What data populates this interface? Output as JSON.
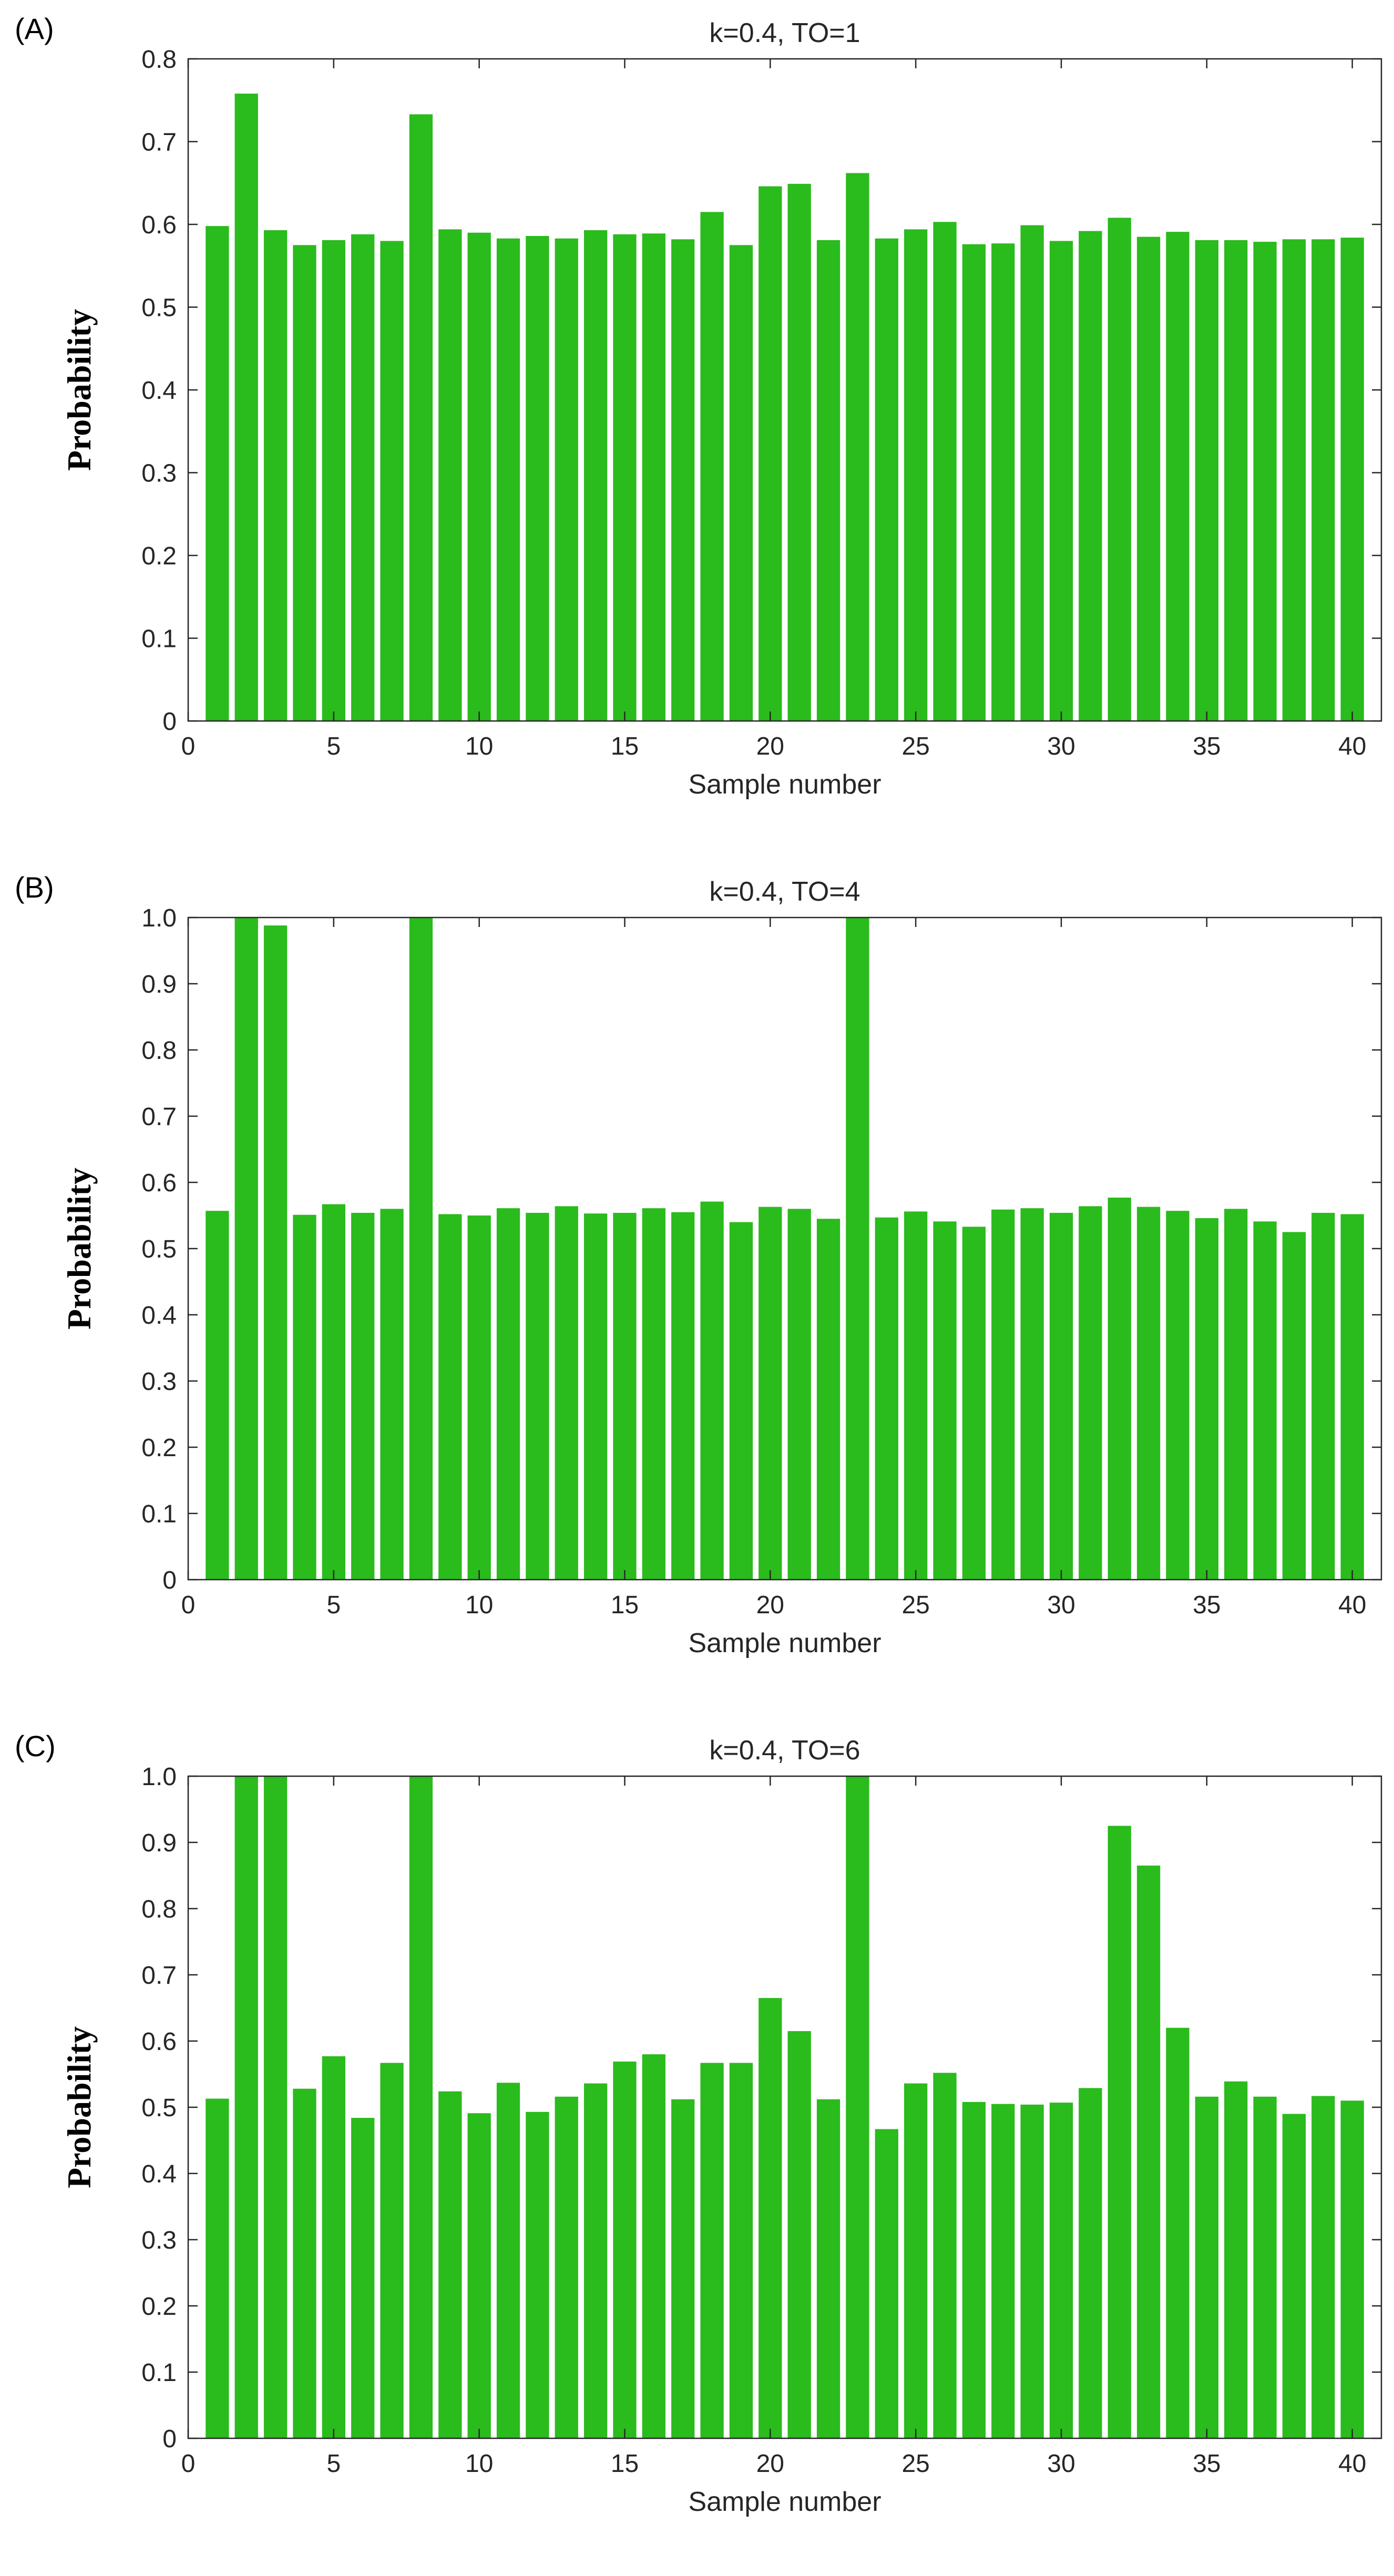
{
  "colors": {
    "bar": "#2ABB1C",
    "axis": "#262626"
  },
  "chart_data": [
    {
      "panel": "(A)",
      "type": "bar",
      "title": "k=0.4, TO=1",
      "xlabel": "Sample number",
      "ylabel": "Probability",
      "xlim": [
        0,
        41
      ],
      "ylim": [
        0,
        0.8
      ],
      "xticks": [
        0,
        5,
        10,
        15,
        20,
        25,
        30,
        35,
        40
      ],
      "yticks": [
        0,
        0.1,
        0.2,
        0.3,
        0.4,
        0.5,
        0.6,
        0.7,
        0.8
      ],
      "ytick_labels": [
        "0",
        "0.1",
        "0.2",
        "0.3",
        "0.4",
        "0.5",
        "0.6",
        "0.7",
        "0.8"
      ],
      "categories": [
        1,
        2,
        3,
        4,
        5,
        6,
        7,
        8,
        9,
        10,
        11,
        12,
        13,
        14,
        15,
        16,
        17,
        18,
        19,
        20,
        21,
        22,
        23,
        24,
        25,
        26,
        27,
        28,
        29,
        30,
        31,
        32,
        33,
        34,
        35,
        36,
        37,
        38,
        39,
        40
      ],
      "values": [
        0.598,
        0.758,
        0.593,
        0.575,
        0.581,
        0.588,
        0.58,
        0.733,
        0.594,
        0.59,
        0.583,
        0.586,
        0.583,
        0.593,
        0.588,
        0.589,
        0.582,
        0.615,
        0.575,
        0.646,
        0.649,
        0.581,
        0.662,
        0.583,
        0.594,
        0.603,
        0.576,
        0.577,
        0.599,
        0.58,
        0.592,
        0.608,
        0.585,
        0.591,
        0.581,
        0.581,
        0.579,
        0.582,
        0.582,
        0.584
      ]
    },
    {
      "panel": "(B)",
      "type": "bar",
      "title": "k=0.4, TO=4",
      "xlabel": "Sample number",
      "ylabel": "Probability",
      "xlim": [
        0,
        41
      ],
      "ylim": [
        0,
        1.0
      ],
      "xticks": [
        0,
        5,
        10,
        15,
        20,
        25,
        30,
        35,
        40
      ],
      "yticks": [
        0,
        0.1,
        0.2,
        0.3,
        0.4,
        0.5,
        0.6,
        0.7,
        0.8,
        0.9,
        1.0
      ],
      "ytick_labels": [
        "0",
        "0.1",
        "0.2",
        "0.3",
        "0.4",
        "0.5",
        "0.6",
        "0.7",
        "0.8",
        "0.9",
        "1.0"
      ],
      "categories": [
        1,
        2,
        3,
        4,
        5,
        6,
        7,
        8,
        9,
        10,
        11,
        12,
        13,
        14,
        15,
        16,
        17,
        18,
        19,
        20,
        21,
        22,
        23,
        24,
        25,
        26,
        27,
        28,
        29,
        30,
        31,
        32,
        33,
        34,
        35,
        36,
        37,
        38,
        39,
        40
      ],
      "values": [
        0.557,
        1.0,
        0.988,
        0.551,
        0.567,
        0.554,
        0.56,
        1.0,
        0.552,
        0.55,
        0.561,
        0.554,
        0.564,
        0.553,
        0.554,
        0.561,
        0.555,
        0.571,
        0.54,
        0.563,
        0.56,
        0.545,
        1.0,
        0.547,
        0.556,
        0.541,
        0.533,
        0.559,
        0.561,
        0.554,
        0.564,
        0.577,
        0.563,
        0.557,
        0.546,
        0.56,
        0.541,
        0.525,
        0.554,
        0.552
      ]
    },
    {
      "panel": "(C)",
      "type": "bar",
      "title": "k=0.4, TO=6",
      "xlabel": "Sample number",
      "ylabel": "Probability",
      "xlim": [
        0,
        41
      ],
      "ylim": [
        0,
        1.0
      ],
      "xticks": [
        0,
        5,
        10,
        15,
        20,
        25,
        30,
        35,
        40
      ],
      "yticks": [
        0,
        0.1,
        0.2,
        0.3,
        0.4,
        0.5,
        0.6,
        0.7,
        0.8,
        0.9,
        1.0
      ],
      "ytick_labels": [
        "0",
        "0.1",
        "0.2",
        "0.3",
        "0.4",
        "0.5",
        "0.6",
        "0.7",
        "0.8",
        "0.9",
        "1.0"
      ],
      "categories": [
        1,
        2,
        3,
        4,
        5,
        6,
        7,
        8,
        9,
        10,
        11,
        12,
        13,
        14,
        15,
        16,
        17,
        18,
        19,
        20,
        21,
        22,
        23,
        24,
        25,
        26,
        27,
        28,
        29,
        30,
        31,
        32,
        33,
        34,
        35,
        36,
        37,
        38,
        39,
        40
      ],
      "values": [
        0.513,
        1.0,
        1.0,
        0.528,
        0.577,
        0.484,
        0.567,
        1.0,
        0.524,
        0.491,
        0.537,
        0.493,
        0.516,
        0.536,
        0.569,
        0.58,
        0.512,
        0.567,
        0.567,
        0.665,
        0.615,
        0.512,
        1.0,
        0.467,
        0.536,
        0.552,
        0.508,
        0.505,
        0.504,
        0.507,
        0.529,
        0.925,
        0.865,
        0.62,
        0.516,
        0.539,
        0.516,
        0.49,
        0.517,
        0.51
      ]
    }
  ]
}
